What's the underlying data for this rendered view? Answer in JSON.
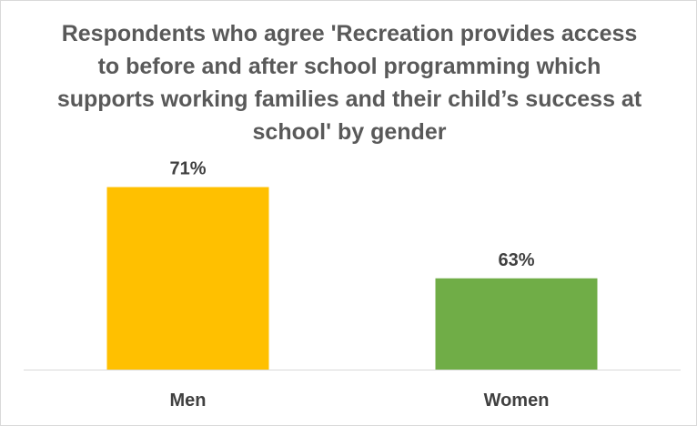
{
  "chart_data": {
    "type": "bar",
    "title": "Respondents who agree 'Recreation provides access to before and after school programming which supports working families and their child’s success at school' by gender",
    "categories": [
      "Men",
      "Women"
    ],
    "values": [
      71,
      63
    ],
    "data_labels": [
      "71%",
      "63%"
    ],
    "colors": [
      "#FFC000",
      "#70AD47"
    ],
    "ylim": [
      55,
      72
    ],
    "xlabel": "",
    "ylabel": "",
    "grid": false,
    "legend": "none"
  }
}
